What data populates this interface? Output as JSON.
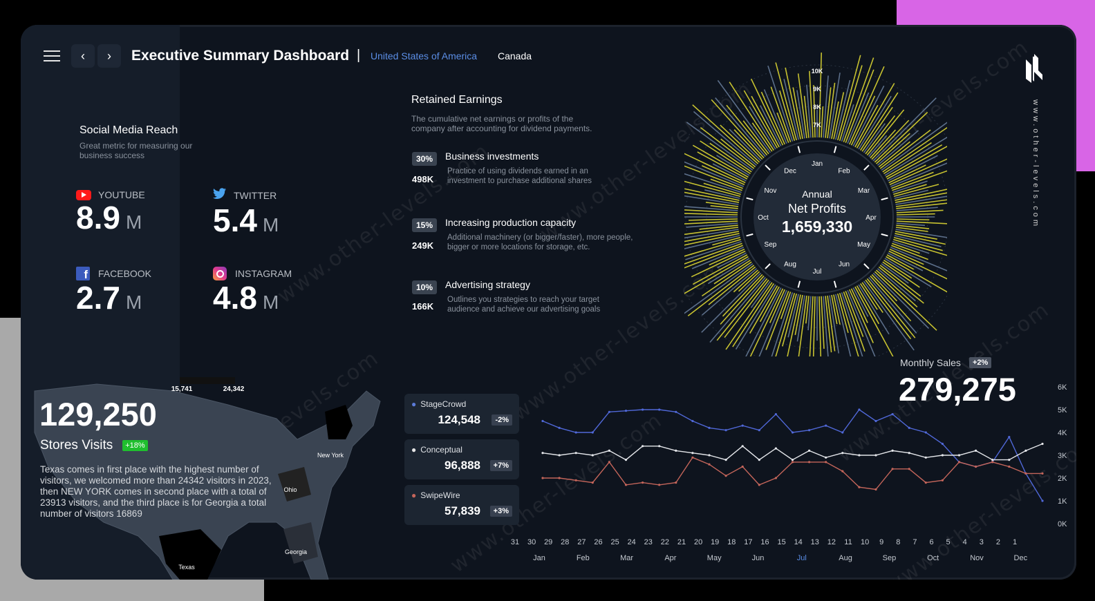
{
  "header": {
    "title": "Executive Summary Dashboard",
    "separator": "|",
    "tabs": [
      {
        "label": "United States of America",
        "active": true
      },
      {
        "label": "Canada",
        "active": false
      }
    ],
    "back_icon": "chevron-left-icon",
    "forward_icon": "chevron-right-icon",
    "menu_icon": "hamburger-menu-icon",
    "logo_icon": "dl-logo-icon",
    "side_url": "www.other-levels.com"
  },
  "watermark": "www.other-levels.com",
  "social": {
    "title": "Social Media Reach",
    "subtitle": "Great metric for measuring our business success",
    "items": [
      {
        "label": "YOUTUBE",
        "value": "8.9",
        "unit": "M",
        "icon": "youtube-icon",
        "color": "#ff1a1a"
      },
      {
        "label": "TWITTER",
        "value": "5.4",
        "unit": "M",
        "icon": "twitter-icon",
        "color": "#4aa3ee"
      },
      {
        "label": "FACEBOOK",
        "value": "2.7",
        "unit": "M",
        "icon": "facebook-icon",
        "color": "#3b5bbd"
      },
      {
        "label": "INSTAGRAM",
        "value": "4.8",
        "unit": "M",
        "icon": "instagram-icon",
        "color": "#e03a8c"
      }
    ]
  },
  "retained": {
    "title": "Retained Earnings",
    "subtitle": "The cumulative net earnings or profits of the company after accounting for dividend payments.",
    "items": [
      {
        "pct": "30%",
        "amount": "498K",
        "title": "Business investments",
        "desc": "Practice of using dividends earned in an investment to purchase additional shares"
      },
      {
        "pct": "15%",
        "amount": "249K",
        "title": "Increasing production capacity",
        "desc": "Additional machinery (or bigger/faster), more people, bigger or more locations for storage, etc."
      },
      {
        "pct": "10%",
        "amount": "166K",
        "title": "Advertising strategy",
        "desc": "Outlines you strategies to reach your target audience and achieve our advertising goals"
      }
    ]
  },
  "radial": {
    "label1": "Annual",
    "label2": "Net Profits",
    "value": "1,659,330",
    "months": [
      "Jan",
      "Feb",
      "Mar",
      "Apr",
      "May",
      "Jun",
      "Jul",
      "Aug",
      "Sep",
      "Oct",
      "Nov",
      "Dec"
    ],
    "scale": [
      "10K",
      "9K",
      "8K",
      "7K"
    ],
    "colors": {
      "bars": "#c7c230",
      "alt": "#5c6f8a"
    }
  },
  "stores": {
    "value": "129,250",
    "label": "Stores Visits",
    "badge": "+18%",
    "text": "Texas comes in first place with the highest number of visitors, we welcomed more than 24342 visitors in 2023, then NEW YORK comes in second place with a total of 23913 visitors, and the third place is for Georgia a total number of visitors 16869",
    "map_min": "15,741",
    "map_max": "24,342",
    "map_states": [
      "New York",
      "Ohio",
      "Georgia",
      "Texas"
    ]
  },
  "cards": [
    {
      "name": "StageCrowd",
      "value": "124,548",
      "change": "-2%",
      "color": "#5c7bd9"
    },
    {
      "name": "Conceptual",
      "value": "96,888",
      "change": "+7%",
      "color": "#e6e6e6"
    },
    {
      "name": "SwipeWire",
      "value": "57,839",
      "change": "+3%",
      "color": "#c4655a"
    }
  ],
  "monthly": {
    "label": "Monthly Sales",
    "badge": "+2%",
    "value": "279,275"
  },
  "chart_data": {
    "type": "line",
    "x": [
      "31",
      "30",
      "29",
      "28",
      "27",
      "26",
      "25",
      "24",
      "23",
      "22",
      "21",
      "20",
      "19",
      "18",
      "17",
      "16",
      "15",
      "14",
      "13",
      "12",
      "11",
      "10",
      "9",
      "8",
      "7",
      "6",
      "5",
      "4",
      "3",
      "2",
      "1"
    ],
    "x_months": [
      "Jan",
      "Feb",
      "Mar",
      "Apr",
      "May",
      "Jun",
      "Jul",
      "Aug",
      "Sep",
      "Oct",
      "Nov",
      "Dec"
    ],
    "highlight_month": "Jul",
    "y_ticks": [
      "6K",
      "5K",
      "4K",
      "3K",
      "2K",
      "1K",
      "0K"
    ],
    "ylim": [
      0,
      6000
    ],
    "series": [
      {
        "name": "StageCrowd",
        "color": "#5068d8",
        "values": [
          4500,
          4200,
          4000,
          4000,
          4900,
          4950,
          5000,
          5000,
          4900,
          4500,
          4200,
          4100,
          4300,
          4100,
          4800,
          4000,
          4100,
          4300,
          4000,
          5000,
          4500,
          4800,
          4200,
          4000,
          3500,
          2700,
          2500,
          2700,
          3800,
          2200,
          1000
        ]
      },
      {
        "name": "Conceptual",
        "color": "#e4e6ea",
        "values": [
          3100,
          3000,
          3100,
          3000,
          3200,
          2800,
          3400,
          3400,
          3200,
          3100,
          3000,
          2800,
          3400,
          2800,
          3300,
          2800,
          3200,
          2900,
          3100,
          3000,
          3000,
          3200,
          3100,
          2900,
          3000,
          3000,
          3200,
          2800,
          2800,
          3200,
          3500
        ]
      },
      {
        "name": "SwipeWire",
        "color": "#c4655a",
        "values": [
          2000,
          2000,
          1900,
          1800,
          2700,
          1700,
          1800,
          1700,
          1800,
          2900,
          2600,
          2100,
          2500,
          1700,
          2000,
          2700,
          2700,
          2700,
          2300,
          1600,
          1500,
          2400,
          2400,
          1800,
          1900,
          2700,
          2500,
          2700,
          2500,
          2200,
          2200
        ]
      }
    ]
  }
}
